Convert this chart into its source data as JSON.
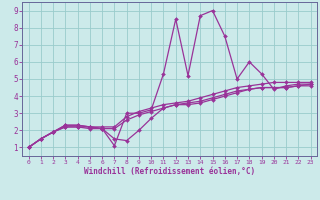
{
  "xlabel": "Windchill (Refroidissement éolien,°C)",
  "xlim": [
    -0.5,
    23.5
  ],
  "ylim": [
    0.5,
    9.5
  ],
  "xticks": [
    0,
    1,
    2,
    3,
    4,
    5,
    6,
    7,
    8,
    9,
    10,
    11,
    12,
    13,
    14,
    15,
    16,
    17,
    18,
    19,
    20,
    21,
    22,
    23
  ],
  "yticks": [
    1,
    2,
    3,
    4,
    5,
    6,
    7,
    8,
    9
  ],
  "bg_color": "#cceaea",
  "grid_color": "#99cccc",
  "line_color": "#993399",
  "axis_color": "#666699",
  "line_width": 0.9,
  "marker": "D",
  "marker_size": 2.0,
  "series": [
    [
      1.0,
      1.5,
      1.9,
      2.3,
      2.3,
      2.2,
      2.1,
      1.1,
      3.0,
      3.0,
      3.2,
      5.3,
      8.5,
      5.2,
      8.7,
      9.0,
      7.5,
      5.0,
      6.0,
      5.3,
      4.4,
      4.6,
      4.7,
      4.7
    ],
    [
      1.0,
      1.5,
      1.9,
      2.3,
      2.3,
      2.2,
      2.1,
      1.5,
      1.4,
      2.0,
      2.7,
      3.3,
      3.5,
      3.5,
      3.6,
      3.8,
      4.0,
      4.2,
      4.4,
      4.5,
      4.5,
      4.5,
      4.6,
      4.7
    ],
    [
      1.0,
      1.5,
      1.9,
      2.2,
      2.2,
      2.2,
      2.2,
      2.2,
      2.8,
      3.1,
      3.3,
      3.5,
      3.6,
      3.7,
      3.9,
      4.1,
      4.3,
      4.5,
      4.6,
      4.7,
      4.8,
      4.8,
      4.8,
      4.8
    ],
    [
      1.0,
      1.5,
      1.9,
      2.2,
      2.2,
      2.1,
      2.1,
      2.1,
      2.6,
      2.9,
      3.1,
      3.3,
      3.5,
      3.6,
      3.7,
      3.9,
      4.1,
      4.3,
      4.4,
      4.5,
      4.5,
      4.5,
      4.6,
      4.6
    ]
  ]
}
